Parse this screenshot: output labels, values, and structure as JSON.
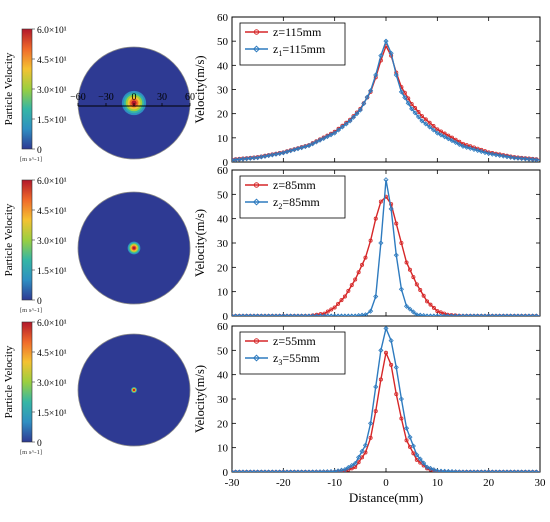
{
  "contour": {
    "colorbar_title": "Particle Velocity",
    "units": "[m s^-1]",
    "ticks": [
      "6.0×10¹",
      "4.5×10¹",
      "3.0×10¹",
      "1.5×10¹",
      "0"
    ],
    "axis_ticks": [
      "−60",
      "−30",
      "0",
      "30",
      "60"
    ],
    "field_color": "#2e3a93",
    "colorscale": [
      "#b2182b",
      "#f06a2a",
      "#f4c232",
      "#9bcf3f",
      "#35b6a5",
      "#2f8fc2",
      "#2e3a93"
    ],
    "panels": [
      {
        "core_radius_rel": 0.24,
        "show_axis": true
      },
      {
        "core_radius_rel": 0.12,
        "show_axis": false
      },
      {
        "core_radius_rel": 0.05,
        "show_axis": false
      }
    ]
  },
  "chart_data": [
    {
      "type": "line",
      "ylabel": "Velocity(m/s)",
      "xlabel": "",
      "xlim": [
        -30,
        30
      ],
      "ylim": [
        0,
        60
      ],
      "yticks": [
        0,
        10,
        20,
        30,
        40,
        50,
        60
      ],
      "xticks": [
        -30,
        -20,
        -10,
        0,
        10,
        20,
        30
      ],
      "show_xticklabels": false,
      "legend_position": "top-left",
      "x": [
        -30,
        -25,
        -20,
        -15,
        -10,
        -7,
        -5,
        -3,
        -2,
        -1,
        0,
        1,
        2,
        3,
        5,
        7,
        10,
        15,
        20,
        25,
        30
      ],
      "series": [
        {
          "name": "z=115mm",
          "legend_main": "z=115mm",
          "legend_sub": "",
          "color": "#d62728",
          "marker": "circle",
          "values": [
            1.0,
            2.0,
            4.0,
            7.0,
            12.5,
            17.5,
            22.0,
            29.0,
            35.0,
            42.0,
            48.0,
            44.0,
            37.0,
            31.0,
            24.0,
            19.0,
            13.5,
            7.5,
            4.0,
            2.0,
            1.0
          ]
        },
        {
          "name": "z1=115mm",
          "legend_main": "z",
          "legend_sub": "1",
          "legend_rest": "=115mm",
          "color": "#2e7bbf",
          "marker": "diamond",
          "values": [
            0.8,
            1.8,
            3.8,
            6.8,
            12.0,
            17.0,
            21.5,
            29.5,
            36.0,
            44.0,
            50.0,
            45.0,
            36.0,
            29.0,
            22.0,
            17.0,
            12.0,
            6.5,
            3.5,
            1.7,
            0.8
          ]
        }
      ]
    },
    {
      "type": "line",
      "ylabel": "Velocity(m/s)",
      "xlabel": "",
      "xlim": [
        -30,
        30
      ],
      "ylim": [
        0,
        60
      ],
      "yticks": [
        0,
        10,
        20,
        30,
        40,
        50,
        60
      ],
      "xticks": [
        -30,
        -20,
        -10,
        0,
        10,
        20,
        30
      ],
      "show_xticklabels": false,
      "legend_position": "top-left",
      "x": [
        -30,
        -20,
        -15,
        -12,
        -10,
        -8,
        -6,
        -4,
        -3,
        -2,
        -1,
        0,
        1,
        2,
        3,
        4,
        6,
        8,
        10,
        12,
        15,
        20,
        30
      ],
      "series": [
        {
          "name": "z=85mm",
          "legend_main": "z=85mm",
          "legend_sub": "",
          "color": "#d62728",
          "marker": "circle",
          "values": [
            0,
            0,
            0,
            1.0,
            3.5,
            8.0,
            15.0,
            24.0,
            31.0,
            40.0,
            47.0,
            49.0,
            46.0,
            38.0,
            30.0,
            22.0,
            13.0,
            6.0,
            2.0,
            0.5,
            0,
            0,
            0
          ]
        },
        {
          "name": "z2=85mm",
          "legend_main": "z",
          "legend_sub": "2",
          "legend_rest": "=85mm",
          "color": "#2e7bbf",
          "marker": "diamond",
          "values": [
            0,
            0,
            0,
            0,
            0,
            0,
            0,
            0.5,
            2.0,
            8.0,
            30.0,
            56.0,
            44.0,
            25.0,
            11.0,
            4.0,
            0.5,
            0,
            0,
            0,
            0,
            0,
            0
          ]
        }
      ]
    },
    {
      "type": "line",
      "ylabel": "Velocity(m/s)",
      "xlabel": "Distance(mm)",
      "xlim": [
        -30,
        30
      ],
      "ylim": [
        0,
        60
      ],
      "yticks": [
        0,
        10,
        20,
        30,
        40,
        50,
        60
      ],
      "xticks": [
        -30,
        -20,
        -10,
        0,
        10,
        20,
        30
      ],
      "show_xticklabels": true,
      "legend_position": "top-left",
      "x": [
        -30,
        -15,
        -10,
        -8,
        -6,
        -4,
        -3,
        -2,
        -1,
        0,
        1,
        2,
        3,
        4,
        6,
        8,
        10,
        15,
        30
      ],
      "series": [
        {
          "name": "z=55mm",
          "legend_main": "z=55mm",
          "legend_sub": "",
          "color": "#d62728",
          "marker": "circle",
          "values": [
            0,
            0,
            0,
            0.5,
            2.0,
            8.0,
            14.0,
            25.0,
            38.0,
            49.0,
            44.0,
            32.0,
            22.0,
            13.0,
            5.0,
            1.5,
            0,
            0,
            0
          ]
        },
        {
          "name": "z3=55mm",
          "legend_main": "z",
          "legend_sub": "3",
          "legend_rest": "=55mm",
          "color": "#2e7bbf",
          "marker": "diamond",
          "values": [
            0,
            0,
            0.2,
            1.0,
            3.5,
            11.0,
            20.0,
            35.0,
            50.0,
            59.0,
            54.0,
            43.0,
            30.0,
            18.0,
            7.0,
            2.0,
            0.4,
            0,
            0
          ]
        }
      ]
    }
  ]
}
